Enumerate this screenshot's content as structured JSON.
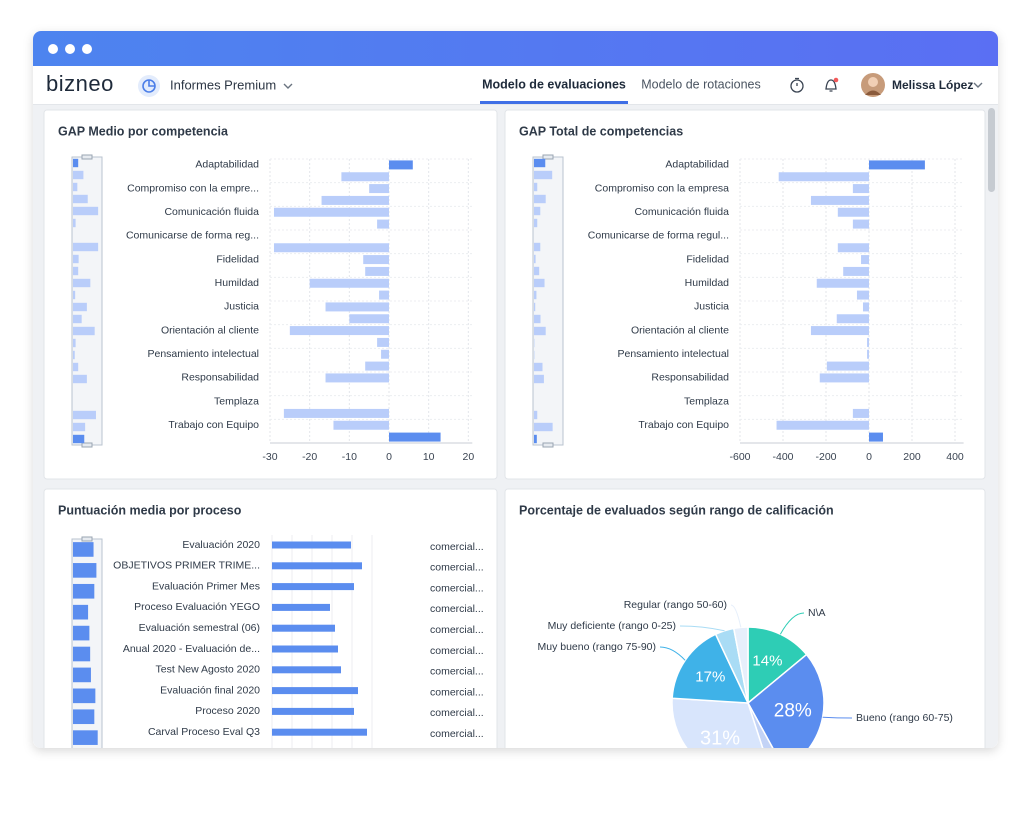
{
  "app": {
    "logo": "bizneo",
    "menu": "Informes Premium",
    "tabs": [
      "Modelo de evaluaciones",
      "Modelo de rotaciones"
    ],
    "active_tab": 0,
    "user": "Melissa López"
  },
  "chart_data": [
    {
      "type": "gap",
      "title": "GAP Medio por competencia",
      "categories": [
        "Adaptabilidad",
        null,
        "Compromiso con la empre...",
        null,
        "Comunicación fluida",
        null,
        "Comunicarse de forma reg...",
        null,
        "Fidelidad",
        null,
        "Humildad",
        null,
        "Justicia",
        null,
        "Orientación al cliente",
        null,
        "Pensamiento intelectual",
        null,
        "Responsabilidad",
        null,
        "Templaza",
        null,
        "Trabajo con Equipo",
        null
      ],
      "values": [
        6,
        -12,
        -5,
        -17,
        -29,
        -3,
        0,
        -29,
        -6.5,
        -6,
        -20,
        -2.5,
        -16,
        -10,
        -25,
        -3,
        -2,
        -6,
        -16,
        0,
        0,
        -26.5,
        -14,
        13
      ],
      "positive_color": "#5b8def",
      "negative_color": "#b9cdfa",
      "xlim": [
        -30,
        21
      ],
      "xticks": [
        -30,
        -20,
        -10,
        0,
        10,
        20
      ],
      "grid": true
    },
    {
      "type": "gap",
      "title": "GAP Total de competencias",
      "categories": [
        "Adaptabilidad",
        null,
        "Compromiso con la empresa",
        null,
        "Comunicación fluida",
        null,
        "Comunicarse de forma regul...",
        null,
        "Fidelidad",
        null,
        "Humildad",
        null,
        "Justicia",
        null,
        "Orientación al cliente",
        null,
        "Pensamiento intelectual",
        null,
        "Responsabilidad",
        null,
        "Templaza",
        null,
        "Trabajo con Equipo",
        null
      ],
      "values": [
        260,
        -420,
        -75,
        -270,
        -145,
        -75,
        0,
        -145,
        -37,
        -120,
        -243,
        -56,
        -28,
        -150,
        -270,
        -9,
        -9,
        -196,
        -229,
        0,
        0,
        -75,
        -430,
        65
      ],
      "positive_color": "#5b8def",
      "negative_color": "#b9cdfa",
      "xlim": [
        -600,
        440
      ],
      "xticks": [
        -600,
        -400,
        -200,
        0,
        200,
        400
      ],
      "grid": true
    },
    {
      "type": "bar",
      "title": "Puntuación media por proceso",
      "categories": [
        "Evaluación 2020",
        "OBJETIVOS PRIMER TRIME...",
        "Evaluación Primer Mes",
        "Proceso Evaluación YEGO",
        "Evaluación semestral (06)",
        "Anual 2020 - Evaluación de...",
        "Test New Agosto 2020",
        "Evaluación final 2020",
        "Proceso 2020",
        "Carval Proceso Eval Q3"
      ],
      "values": [
        7.9,
        9.0,
        8.2,
        5.8,
        6.3,
        6.6,
        6.9,
        8.6,
        8.2,
        9.5
      ],
      "row_labels": [
        "comercial...",
        "comercial...",
        "comercial...",
        "comercial...",
        "comercial...",
        "comercial...",
        "comercial...",
        "comercial...",
        "comercial...",
        "comercial..."
      ],
      "color": "#5b8def",
      "xlim": [
        0,
        10
      ]
    },
    {
      "type": "pie",
      "title": "Porcentaje de evaluados según rango de calificación",
      "labels": [
        "N\\A",
        "Bueno (rango 60-75)",
        null,
        null,
        "Muy bueno (rango 75-90)",
        "Muy deficiente (rango 0-25)",
        "Regular (rango 50-60)"
      ],
      "values": [
        14,
        28,
        3,
        31,
        17,
        4,
        3
      ],
      "value_labels": [
        "14%",
        "28%",
        null,
        "31%",
        "17%",
        null,
        null
      ],
      "colors": [
        "#2ecdb5",
        "#5b8def",
        "#c3d3f6",
        "#d8e5fc",
        "#3fb2e8",
        "#a9dcf5",
        "#e6effb"
      ]
    }
  ]
}
